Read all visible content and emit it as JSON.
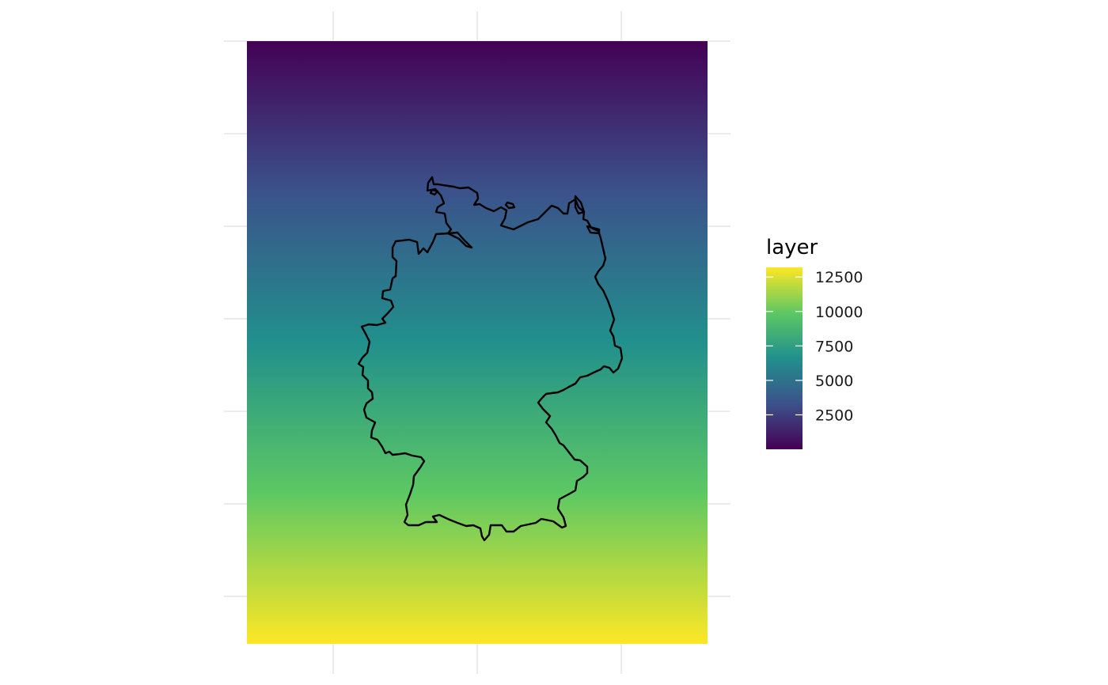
{
  "legend": {
    "title": "layer",
    "breaks": [
      {
        "value": 2500,
        "label": "2500"
      },
      {
        "value": 5000,
        "label": "5000"
      },
      {
        "value": 7500,
        "label": "7500"
      },
      {
        "value": 10000,
        "label": "10000"
      },
      {
        "value": 12500,
        "label": "12500"
      }
    ],
    "range": [
      1,
      13200
    ],
    "palette": [
      "#440154",
      "#3B528B",
      "#21908C",
      "#5DC863",
      "#FDE725"
    ]
  },
  "map": {
    "region_outline": "Germany",
    "fill_direction": "north-low-to-south-high",
    "panel_background": "#ffffff",
    "grid_color": "#ebebeb",
    "outline_color": "#000000"
  }
}
